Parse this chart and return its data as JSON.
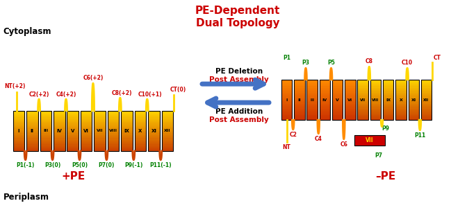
{
  "title_line1": "PE-Dependent",
  "title_line2": "Dual Topology",
  "title_color": "#cc0000",
  "cytoplasm_label": "Cytoplasm",
  "periplasm_label": "Periplasm",
  "plus_pe_label": "+PE",
  "minus_pe_label": "–PE",
  "arrow_color": "#4472c4",
  "arrow_label1_line1": "PE Deletion",
  "arrow_label1_line2": "Post Assembly",
  "arrow_label2_line1": "PE Addition",
  "arrow_label2_line2": "Post Assembly",
  "roman_numerals": [
    "I",
    "II",
    "III",
    "IV",
    "V",
    "VI",
    "VII",
    "VIII",
    "IX",
    "X",
    "XI",
    "XII"
  ],
  "background_color": "#ffffff",
  "green_color": "#008000",
  "red_color": "#cc0000",
  "gold_color": "#FFD700",
  "dark_orange": "#CC4400",
  "orange": "#FF8C00"
}
